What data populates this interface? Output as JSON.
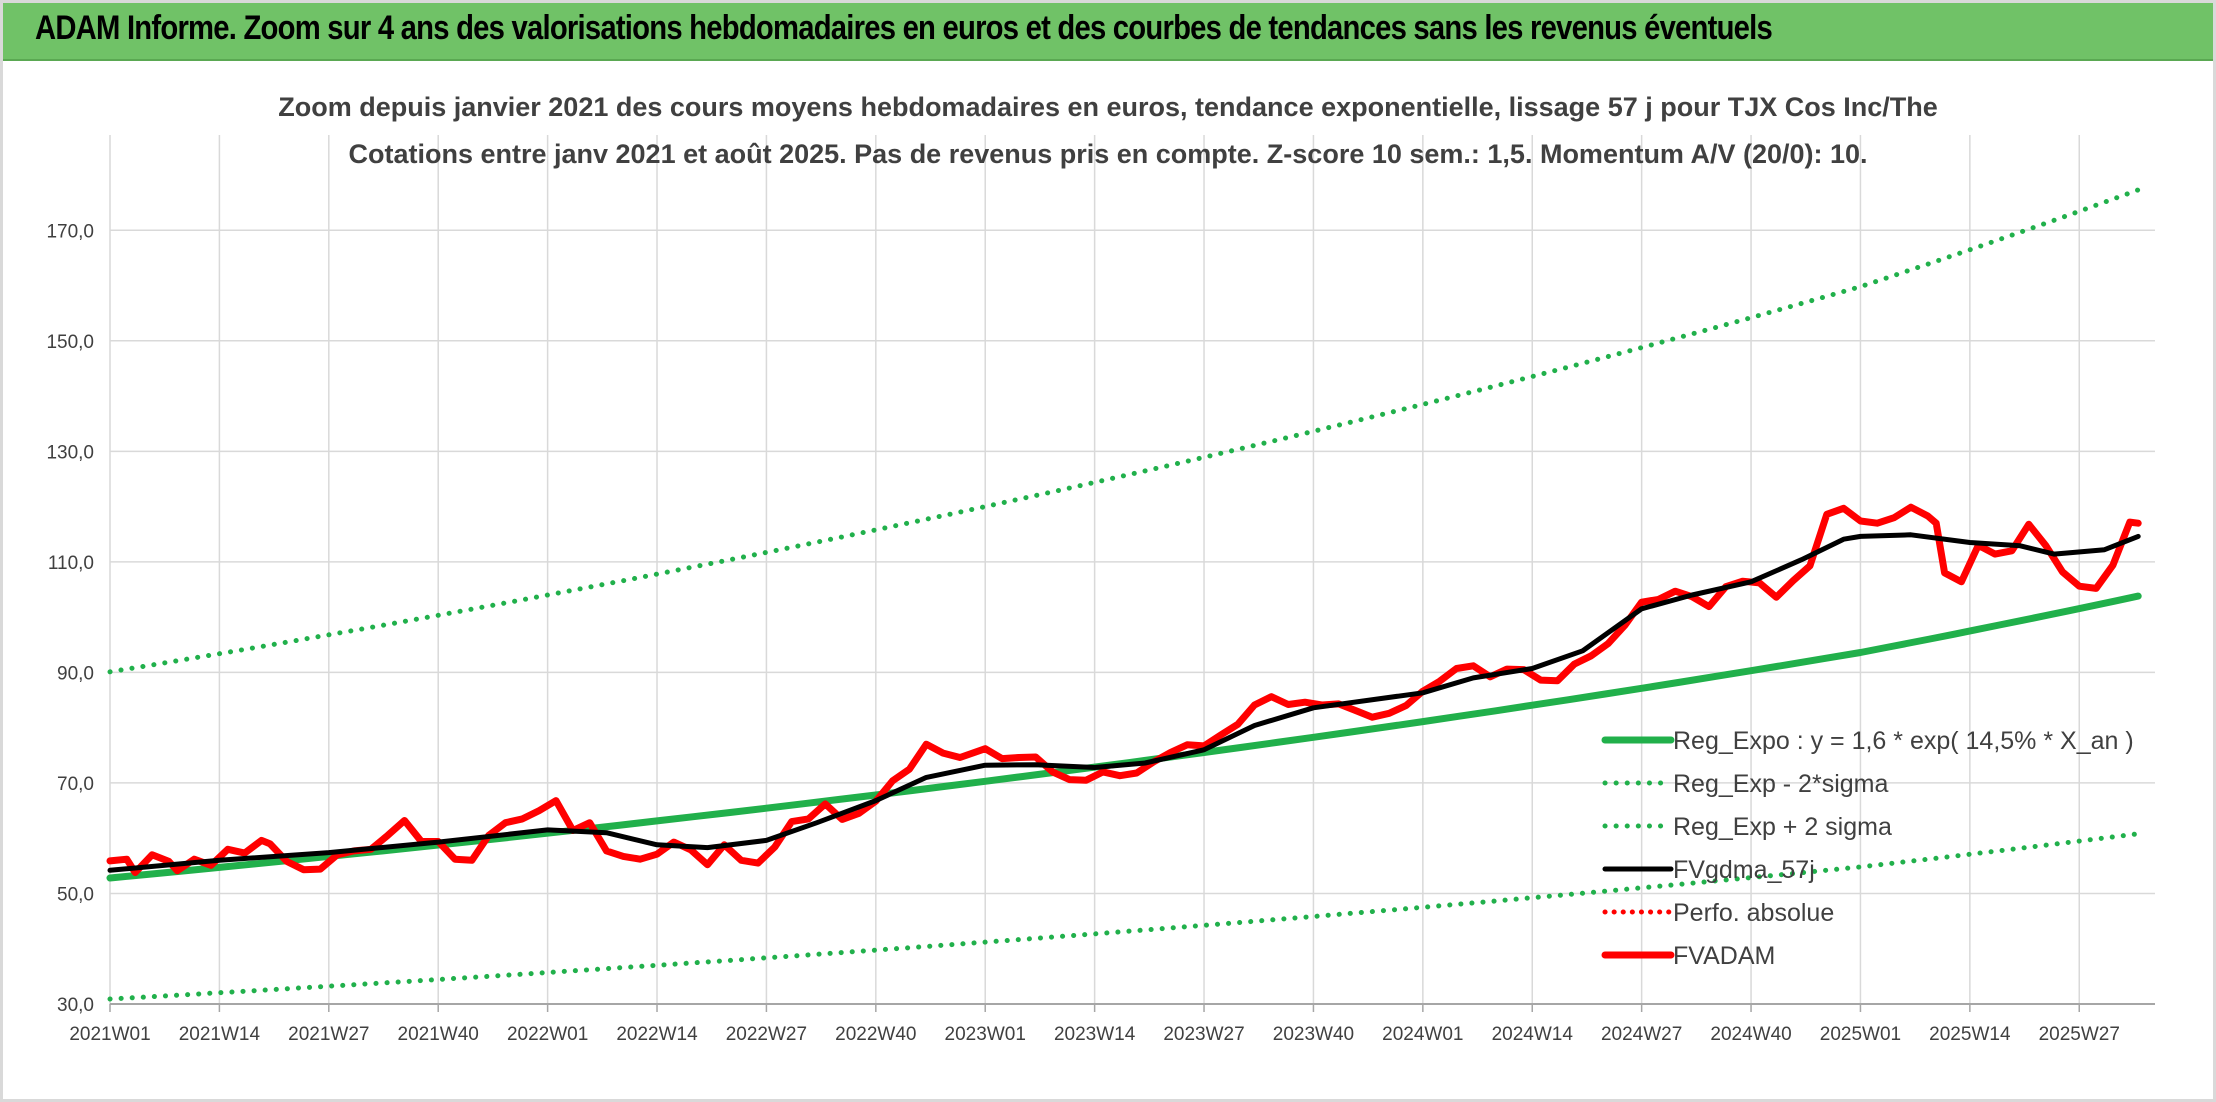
{
  "banner": {
    "title": "ADAM Informe. Zoom sur 4 ans des valorisations hebdomadaires en euros et des courbes de tendances sans les revenus éventuels"
  },
  "colors": {
    "banner_bg": "#70c267",
    "trend_green": "#21b04b",
    "fvgdma_black": "#000000",
    "fvadam_red": "#ff0000",
    "perfo_red": "#ff0000",
    "grid": "#d9d9d9",
    "text": "#404040"
  },
  "chart_data": {
    "type": "line",
    "title": "Zoom depuis janvier 2021 des cours moyens hebdomadaires en euros, tendance exponentielle, lissage 57 j pour TJX Cos Inc/The",
    "subtitle": "Cotations entre janv 2021 et août 2025. Pas de revenus pris en compte. Z-score 10 sem.: 1,5. Momentum A/V (20/0): 10.",
    "xlabel": "",
    "ylabel": "",
    "x_range": [
      "2021W01",
      "2025W34"
    ],
    "x_categories": [
      "2021W01",
      "2021W14",
      "2021W27",
      "2021W40",
      "2022W01",
      "2022W14",
      "2022W27",
      "2022W40",
      "2023W01",
      "2023W14",
      "2023W27",
      "2023W40",
      "2024W01",
      "2024W14",
      "2024W27",
      "2024W40",
      "2025W01",
      "2025W14",
      "2025W27"
    ],
    "y_ticks": [
      "30,0",
      "50,0",
      "70,0",
      "90,0",
      "110,0",
      "130,0",
      "150,0",
      "170,0"
    ],
    "ylim": [
      30,
      180
    ],
    "grid": true,
    "legend_position": "bottom-right",
    "series": [
      {
        "name": "Reg_Expo : y = 1,6 * exp( 14,5% *  X_an )",
        "style": "solid-thick",
        "color": "#21b04b",
        "points": [
          [
            "2021W01",
            52.8
          ],
          [
            "2022W01",
            60.9
          ],
          [
            "2023W01",
            70.3
          ],
          [
            "2024W01",
            81.1
          ],
          [
            "2025W01",
            93.6
          ],
          [
            "2025W34",
            103.8
          ]
        ]
      },
      {
        "name": "Reg_Exp - 2*sigma",
        "style": "dotted",
        "color": "#21b04b",
        "points": [
          [
            "2021W01",
            30.9
          ],
          [
            "2022W01",
            35.7
          ],
          [
            "2023W01",
            41.2
          ],
          [
            "2024W01",
            47.5
          ],
          [
            "2025W01",
            54.8
          ],
          [
            "2025W34",
            60.8
          ]
        ]
      },
      {
        "name": "Reg_Exp + 2 sigma",
        "style": "dotted",
        "color": "#21b04b",
        "points": [
          [
            "2021W01",
            90.1
          ],
          [
            "2022W01",
            104.0
          ],
          [
            "2023W01",
            120.0
          ],
          [
            "2024W01",
            138.5
          ],
          [
            "2025W01",
            159.8
          ],
          [
            "2025W34",
            177.3
          ]
        ]
      },
      {
        "name": "FVgdma_57j",
        "style": "solid",
        "color": "#000000",
        "points": [
          [
            "2021W01",
            54.2
          ],
          [
            "2021W14",
            56.0
          ],
          [
            "2021W27",
            57.4
          ],
          [
            "2021W40",
            59.3
          ],
          [
            "2022W01",
            61.5
          ],
          [
            "2022W08",
            61.0
          ],
          [
            "2022W14",
            58.8
          ],
          [
            "2022W20",
            58.3
          ],
          [
            "2022W27",
            59.6
          ],
          [
            "2022W33",
            62.8
          ],
          [
            "2022W40",
            66.8
          ],
          [
            "2022W46",
            71.0
          ],
          [
            "2023W01",
            73.2
          ],
          [
            "2023W07",
            73.3
          ],
          [
            "2023W14",
            72.8
          ],
          [
            "2023W20",
            73.6
          ],
          [
            "2023W27",
            76.0
          ],
          [
            "2023W33",
            80.4
          ],
          [
            "2023W40",
            83.6
          ],
          [
            "2024W01",
            86.3
          ],
          [
            "2024W07",
            89.0
          ],
          [
            "2024W14",
            90.7
          ],
          [
            "2024W20",
            93.9
          ],
          [
            "2024W27",
            101.5
          ],
          [
            "2024W33",
            104.0
          ],
          [
            "2024W40",
            106.4
          ],
          [
            "2024W46",
            110.4
          ],
          [
            "2024W51",
            114.1
          ],
          [
            "2025W01",
            114.6
          ],
          [
            "2025W07",
            114.9
          ],
          [
            "2025W14",
            113.5
          ],
          [
            "2025W20",
            112.9
          ],
          [
            "2025W24",
            111.4
          ],
          [
            "2025W30",
            112.2
          ],
          [
            "2025W34",
            114.6
          ]
        ]
      },
      {
        "name": "Perfo. absolue",
        "style": "dotted",
        "color": "#ff0000",
        "points": []
      },
      {
        "name": "FVADAM",
        "style": "solid-thick",
        "color": "#ff0000",
        "points": [
          [
            "2021W01",
            55.9
          ],
          [
            "2021W03",
            56.2
          ],
          [
            "2021W04",
            53.8
          ],
          [
            "2021W06",
            57.0
          ],
          [
            "2021W08",
            55.8
          ],
          [
            "2021W09",
            54.1
          ],
          [
            "2021W11",
            56.2
          ],
          [
            "2021W13",
            55.1
          ],
          [
            "2021W15",
            58.0
          ],
          [
            "2021W17",
            57.3
          ],
          [
            "2021W19",
            59.6
          ],
          [
            "2021W20",
            59.0
          ],
          [
            "2021W22",
            55.8
          ],
          [
            "2021W24",
            54.3
          ],
          [
            "2021W26",
            54.4
          ],
          [
            "2021W28",
            57.0
          ],
          [
            "2021W30",
            57.7
          ],
          [
            "2021W32",
            58.0
          ],
          [
            "2021W34",
            60.5
          ],
          [
            "2021W36",
            63.2
          ],
          [
            "2021W38",
            59.4
          ],
          [
            "2021W40",
            59.4
          ],
          [
            "2021W42",
            56.2
          ],
          [
            "2021W44",
            56.0
          ],
          [
            "2021W46",
            60.5
          ],
          [
            "2021W48",
            62.8
          ],
          [
            "2021W50",
            63.5
          ],
          [
            "2021W52",
            65.0
          ],
          [
            "2022W02",
            66.8
          ],
          [
            "2022W04",
            61.4
          ],
          [
            "2022W06",
            62.8
          ],
          [
            "2022W08",
            57.7
          ],
          [
            "2022W10",
            56.7
          ],
          [
            "2022W12",
            56.2
          ],
          [
            "2022W14",
            57.1
          ],
          [
            "2022W16",
            59.3
          ],
          [
            "2022W18",
            57.9
          ],
          [
            "2022W20",
            55.2
          ],
          [
            "2022W22",
            58.8
          ],
          [
            "2022W24",
            56.0
          ],
          [
            "2022W26",
            55.5
          ],
          [
            "2022W28",
            58.4
          ],
          [
            "2022W30",
            63.0
          ],
          [
            "2022W32",
            63.5
          ],
          [
            "2022W34",
            66.2
          ],
          [
            "2022W36",
            63.4
          ],
          [
            "2022W38",
            64.5
          ],
          [
            "2022W40",
            66.7
          ],
          [
            "2022W42",
            70.4
          ],
          [
            "2022W44",
            72.5
          ],
          [
            "2022W46",
            77.0
          ],
          [
            "2022W48",
            75.4
          ],
          [
            "2022W50",
            74.6
          ],
          [
            "2023W01",
            76.2
          ],
          [
            "2023W03",
            74.4
          ],
          [
            "2023W05",
            74.6
          ],
          [
            "2023W07",
            74.7
          ],
          [
            "2023W09",
            72.0
          ],
          [
            "2023W11",
            70.6
          ],
          [
            "2023W13",
            70.5
          ],
          [
            "2023W15",
            72.0
          ],
          [
            "2023W17",
            71.3
          ],
          [
            "2023W19",
            71.8
          ],
          [
            "2023W21",
            73.8
          ],
          [
            "2023W23",
            75.5
          ],
          [
            "2023W25",
            76.9
          ],
          [
            "2023W27",
            76.7
          ],
          [
            "2023W29",
            78.7
          ],
          [
            "2023W31",
            80.6
          ],
          [
            "2023W33",
            84.1
          ],
          [
            "2023W35",
            85.6
          ],
          [
            "2023W37",
            84.2
          ],
          [
            "2023W39",
            84.6
          ],
          [
            "2023W41",
            84.1
          ],
          [
            "2023W43",
            84.3
          ],
          [
            "2023W45",
            83.1
          ],
          [
            "2023W47",
            81.9
          ],
          [
            "2023W49",
            82.6
          ],
          [
            "2023W51",
            84.0
          ],
          [
            "2024W01",
            86.6
          ],
          [
            "2024W03",
            88.4
          ],
          [
            "2024W05",
            90.7
          ],
          [
            "2024W07",
            91.2
          ],
          [
            "2024W09",
            89.2
          ],
          [
            "2024W11",
            90.6
          ],
          [
            "2024W13",
            90.5
          ],
          [
            "2024W15",
            88.6
          ],
          [
            "2024W17",
            88.5
          ],
          [
            "2024W19",
            91.5
          ],
          [
            "2024W21",
            93.0
          ],
          [
            "2024W23",
            95.2
          ],
          [
            "2024W25",
            98.5
          ],
          [
            "2024W27",
            102.7
          ],
          [
            "2024W29",
            103.2
          ],
          [
            "2024W31",
            104.7
          ],
          [
            "2024W33",
            103.7
          ],
          [
            "2024W35",
            101.9
          ],
          [
            "2024W37",
            105.5
          ],
          [
            "2024W39",
            106.5
          ],
          [
            "2024W41",
            106.2
          ],
          [
            "2024W43",
            103.6
          ],
          [
            "2024W45",
            106.6
          ],
          [
            "2024W47",
            109.3
          ],
          [
            "2024W49",
            118.6
          ],
          [
            "2024W51",
            119.7
          ],
          [
            "2025W01",
            117.4
          ],
          [
            "2025W03",
            117.0
          ],
          [
            "2025W05",
            118.0
          ],
          [
            "2025W07",
            119.9
          ],
          [
            "2025W09",
            118.3
          ],
          [
            "2025W10",
            117.0
          ],
          [
            "2025W11",
            108.0
          ],
          [
            "2025W13",
            106.4
          ],
          [
            "2025W15",
            113.0
          ],
          [
            "2025W17",
            111.4
          ],
          [
            "2025W19",
            112.0
          ],
          [
            "2025W21",
            116.8
          ],
          [
            "2025W23",
            113.0
          ],
          [
            "2025W25",
            108.2
          ],
          [
            "2025W27",
            105.6
          ],
          [
            "2025W29",
            105.2
          ],
          [
            "2025W31",
            109.4
          ],
          [
            "2025W33",
            117.2
          ],
          [
            "2025W34",
            117.0
          ]
        ]
      }
    ]
  }
}
